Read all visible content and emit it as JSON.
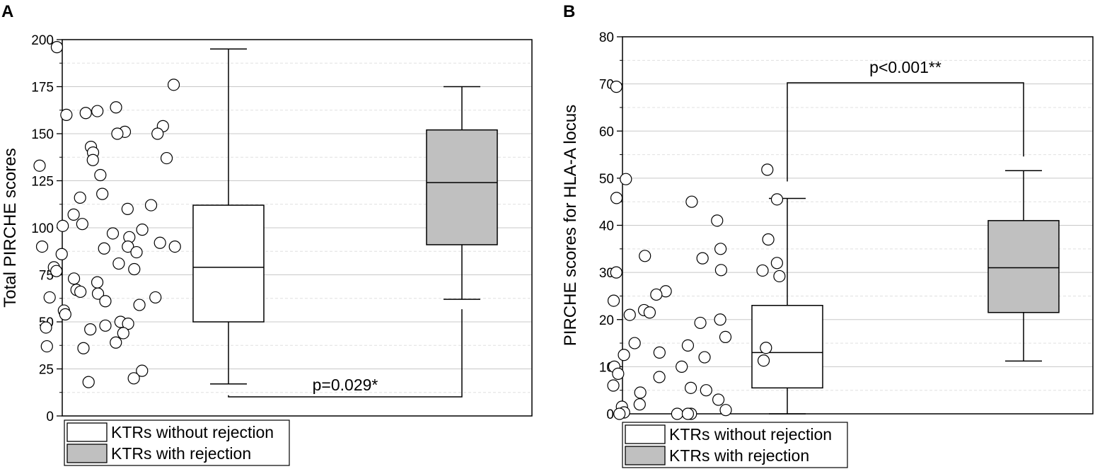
{
  "chart_data": [
    {
      "type": "box",
      "panel_label": "A",
      "ylabel": "Total PIRCHE scores",
      "ylim": [
        0,
        200
      ],
      "yticks": [
        0,
        25,
        50,
        75,
        100,
        125,
        150,
        175,
        200
      ],
      "grid": true,
      "legend": {
        "position": "bottom-left",
        "entries": [
          "KTRs without rejection",
          "KTRs with rejection"
        ]
      },
      "annotation": {
        "text": "p=0.029*",
        "bracket": "bottom"
      },
      "series": [
        {
          "name": "KTRs without rejection",
          "color": "#ffffff",
          "box": {
            "whisker_low": 17,
            "q1": 50,
            "median": 79,
            "q3": 112,
            "whisker_high": 195
          },
          "points": [
            196,
            164,
            162,
            161,
            160,
            151,
            150,
            143,
            140,
            136,
            133,
            128,
            118,
            116,
            110,
            107,
            102,
            101,
            99,
            97,
            95,
            90,
            90,
            89,
            87,
            86,
            81,
            79,
            78,
            77,
            73,
            71,
            67,
            66,
            65,
            63,
            61,
            59,
            56,
            54,
            50,
            49,
            48,
            47,
            46,
            44,
            39,
            37,
            36,
            24,
            20,
            18
          ]
        },
        {
          "name": "KTRs with rejection",
          "color": "#c0c0c0",
          "box": {
            "whisker_low": 62,
            "q1": 91,
            "median": 124,
            "q3": 152,
            "whisker_high": 175
          },
          "points": [
            176,
            154,
            150,
            137,
            112,
            92,
            90,
            63
          ]
        }
      ]
    },
    {
      "type": "box",
      "panel_label": "B",
      "ylabel": "PIRCHE scores for HLA-A locus",
      "ylim": [
        0,
        80
      ],
      "yticks": [
        0,
        10,
        20,
        30,
        40,
        50,
        60,
        70,
        80
      ],
      "grid": true,
      "legend": {
        "position": "bottom-left",
        "entries": [
          "KTRs without rejection",
          "KTRs with rejection"
        ]
      },
      "annotation": {
        "text": "p<0.001**",
        "bracket": "top"
      },
      "series": [
        {
          "name": "KTRs without rejection",
          "color": "#ffffff",
          "box": {
            "whisker_low": 0,
            "q1": 5.5,
            "median": 13,
            "q3": 23,
            "whisker_high": 45.7
          },
          "points": [
            69.4,
            49.8,
            45.8,
            45.0,
            41.0,
            35.0,
            33.5,
            33.0,
            30.5,
            30.0,
            26.0,
            25.3,
            24.0,
            22.0,
            21.5,
            21.0,
            20.0,
            19.3,
            16.3,
            15.0,
            14.5,
            13.0,
            12.5,
            12.0,
            10.0,
            10.0,
            8.5,
            7.8,
            6.0,
            5.5,
            5.0,
            4.5,
            3.0,
            2.0,
            1.5,
            0.8,
            0.3,
            0,
            0,
            0,
            0
          ]
        },
        {
          "name": "KTRs with rejection",
          "color": "#c0c0c0",
          "box": {
            "whisker_low": 11.2,
            "q1": 21.5,
            "median": 31,
            "q3": 41,
            "whisker_high": 51.6
          },
          "points": [
            51.8,
            45.5,
            37.0,
            32.0,
            30.4,
            29.2,
            14.0,
            11.3
          ]
        }
      ]
    }
  ]
}
